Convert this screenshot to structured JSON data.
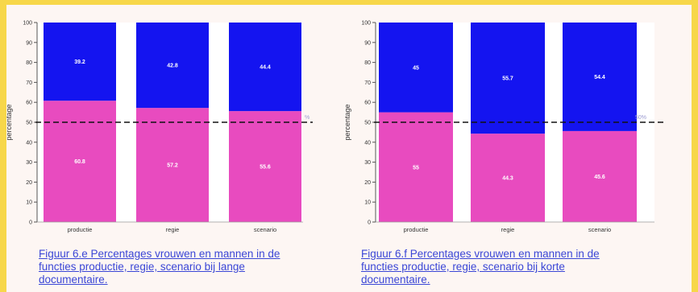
{
  "colors": {
    "women": "#e84bbf",
    "men": "#1414f0",
    "reference_line": "#111111",
    "caption": "#3a46d6"
  },
  "chart_data": [
    {
      "type": "bar",
      "stacked": true,
      "caption": "Figuur 6.e Percentages vrouwen en mannen in de functies productie, regie, scenario bij lange documentaire.",
      "ylabel": "percentage",
      "ylim": [
        0,
        100
      ],
      "yticks": [
        "0",
        "10",
        "20",
        "30",
        "40",
        "50",
        "60",
        "70",
        "80",
        "90",
        "100"
      ],
      "categories": [
        "productie",
        "regie",
        "scenario"
      ],
      "series": [
        {
          "values": [
            60.8,
            57.2,
            55.6
          ],
          "labels": [
            "60.8",
            "57.2",
            "55.6"
          ],
          "color": "#e84bbf"
        },
        {
          "values": [
            39.2,
            42.8,
            44.4
          ],
          "labels": [
            "39.2",
            "42.8",
            "44.4"
          ],
          "color": "#1414f0"
        }
      ],
      "reference_line": {
        "value": 50,
        "label": "%"
      }
    },
    {
      "type": "bar",
      "stacked": true,
      "caption": "Figuur 6.f Percentages vrouwen en mannen in de functies productie, regie, scenario bij korte documentaire.",
      "ylabel": "percentage",
      "ylim": [
        0,
        100
      ],
      "yticks": [
        "0",
        "10",
        "20",
        "30",
        "40",
        "50",
        "60",
        "70",
        "80",
        "90",
        "100"
      ],
      "categories": [
        "productie",
        "regie",
        "scenario"
      ],
      "series": [
        {
          "values": [
            55,
            44.3,
            45.6
          ],
          "labels": [
            "55",
            "44.3",
            "45.6"
          ],
          "color": "#e84bbf"
        },
        {
          "values": [
            45,
            55.7,
            54.4
          ],
          "labels": [
            "45",
            "55.7",
            "54.4"
          ],
          "color": "#1414f0"
        }
      ],
      "reference_line": {
        "value": 50,
        "label": "50%"
      }
    }
  ]
}
